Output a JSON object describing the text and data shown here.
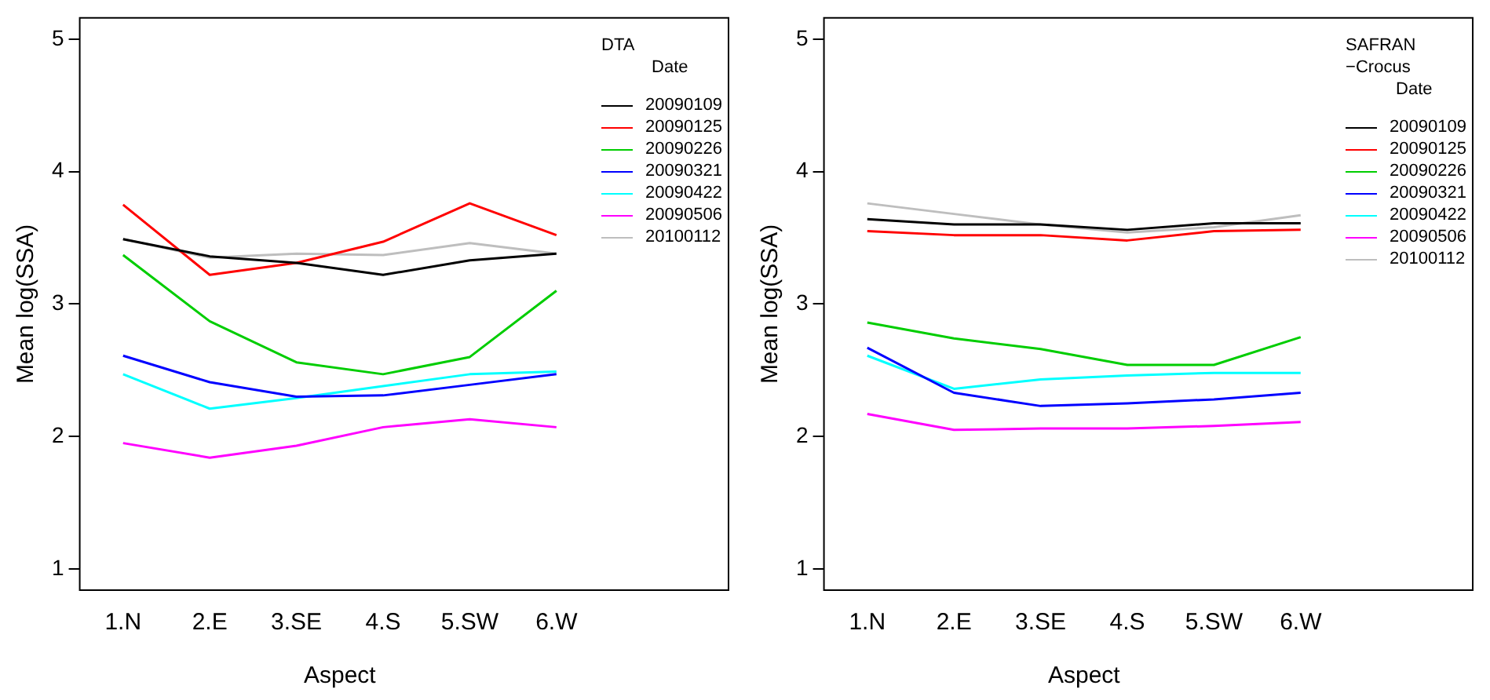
{
  "chart_data": [
    {
      "type": "line",
      "xlabel": "Aspect",
      "ylabel": "Mean log(SSA)",
      "legend_title": "DTA\nDate",
      "legend": "top right",
      "grid": false,
      "categories": [
        "1.N",
        "2.E",
        "3.SE",
        "4.S",
        "5.SW",
        "6.W"
      ],
      "ylim": [
        0.84,
        5.16
      ],
      "yticks": [
        1,
        2,
        3,
        4,
        5
      ],
      "series": [
        {
          "name": "20090109",
          "color": "#000000",
          "values": [
            3.49,
            3.36,
            3.31,
            3.22,
            3.33,
            3.38
          ]
        },
        {
          "name": "20090125",
          "color": "#ff0000",
          "values": [
            3.75,
            3.22,
            3.31,
            3.47,
            3.76,
            3.52
          ]
        },
        {
          "name": "20090226",
          "color": "#00cd00",
          "values": [
            3.37,
            2.87,
            2.56,
            2.47,
            2.6,
            3.1
          ]
        },
        {
          "name": "20090321",
          "color": "#0000ff",
          "values": [
            2.61,
            2.41,
            2.3,
            2.31,
            2.39,
            2.47
          ]
        },
        {
          "name": "20090422",
          "color": "#00ffff",
          "values": [
            2.47,
            2.21,
            2.29,
            2.38,
            2.47,
            2.49
          ]
        },
        {
          "name": "20090506",
          "color": "#ff00ff",
          "values": [
            1.95,
            1.84,
            1.93,
            2.07,
            2.13,
            2.07
          ]
        },
        {
          "name": "20100112",
          "color": "#bebebe",
          "values": [
            3.49,
            3.35,
            3.38,
            3.37,
            3.46,
            3.38
          ]
        }
      ]
    },
    {
      "type": "line",
      "xlabel": "Aspect",
      "ylabel": "Mean log(SSA)",
      "legend_title": "SAFRAN\n−Crocus\nDate",
      "legend": "top right",
      "grid": false,
      "categories": [
        "1.N",
        "2.E",
        "3.SE",
        "4.S",
        "5.SW",
        "6.W"
      ],
      "ylim": [
        0.84,
        5.16
      ],
      "yticks": [
        1,
        2,
        3,
        4,
        5
      ],
      "series": [
        {
          "name": "20090109",
          "color": "#000000",
          "values": [
            3.64,
            3.6,
            3.6,
            3.56,
            3.61,
            3.61
          ]
        },
        {
          "name": "20090125",
          "color": "#ff0000",
          "values": [
            3.55,
            3.52,
            3.52,
            3.48,
            3.55,
            3.56
          ]
        },
        {
          "name": "20090226",
          "color": "#00cd00",
          "values": [
            2.86,
            2.74,
            2.66,
            2.54,
            2.54,
            2.75
          ]
        },
        {
          "name": "20090321",
          "color": "#0000ff",
          "values": [
            2.67,
            2.33,
            2.23,
            2.25,
            2.28,
            2.33
          ]
        },
        {
          "name": "20090422",
          "color": "#00ffff",
          "values": [
            2.61,
            2.36,
            2.43,
            2.46,
            2.48,
            2.48
          ]
        },
        {
          "name": "20090506",
          "color": "#ff00ff",
          "values": [
            2.17,
            2.05,
            2.06,
            2.06,
            2.08,
            2.11
          ]
        },
        {
          "name": "20100112",
          "color": "#bebebe",
          "values": [
            3.76,
            3.68,
            3.6,
            3.54,
            3.58,
            3.67
          ]
        }
      ]
    }
  ]
}
